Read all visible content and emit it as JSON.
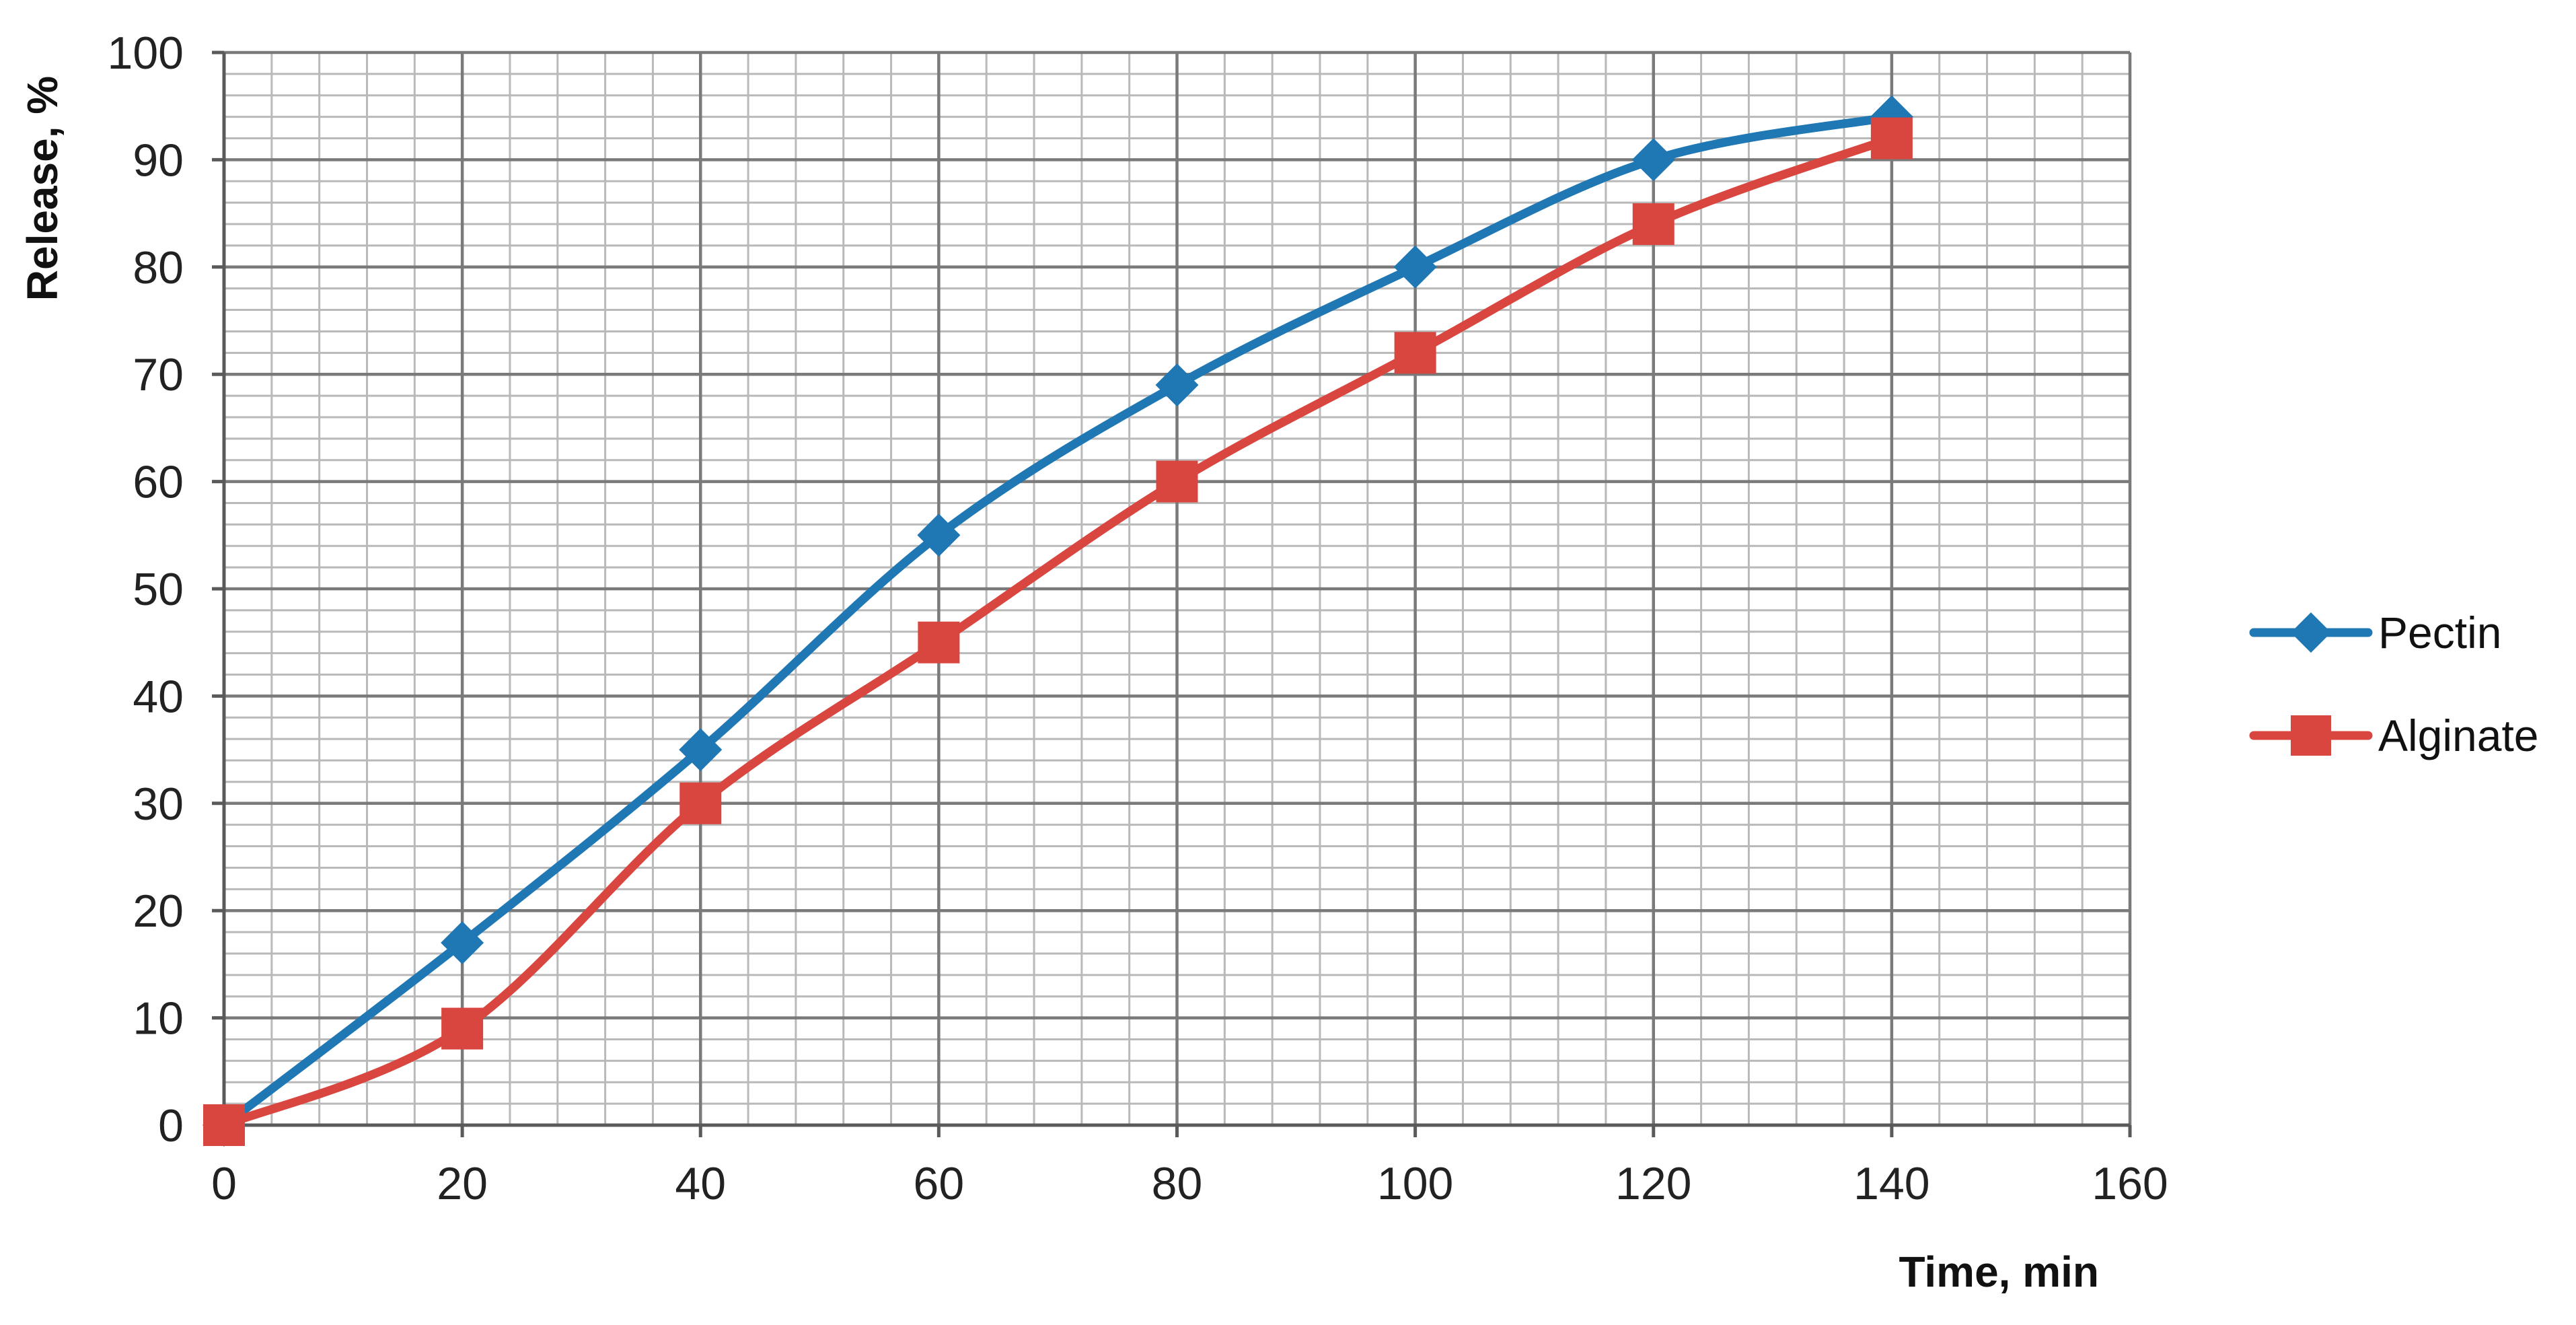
{
  "chart_data": {
    "type": "line",
    "title": "",
    "xlabel": "Time, min",
    "ylabel": "Release, %",
    "xlim": [
      0,
      160
    ],
    "ylim": [
      0,
      100
    ],
    "x_ticks": [
      0,
      20,
      40,
      60,
      80,
      100,
      120,
      140,
      160
    ],
    "y_ticks": [
      0,
      10,
      20,
      30,
      40,
      50,
      60,
      70,
      80,
      90,
      100
    ],
    "x_minor_step": 4,
    "y_minor_step": 2,
    "grid": true,
    "smooth": true,
    "legend_position": "right",
    "x": [
      0,
      20,
      40,
      60,
      80,
      100,
      120,
      140
    ],
    "series": [
      {
        "name": "Pectin",
        "values": [
          0,
          17,
          35,
          55,
          69,
          80,
          90,
          94
        ],
        "color": "#1f77b4",
        "marker": "diamond"
      },
      {
        "name": "Alginate",
        "values": [
          0,
          9,
          30,
          45,
          60,
          72,
          84,
          92
        ],
        "color": "#d9453f",
        "marker": "square"
      }
    ]
  }
}
